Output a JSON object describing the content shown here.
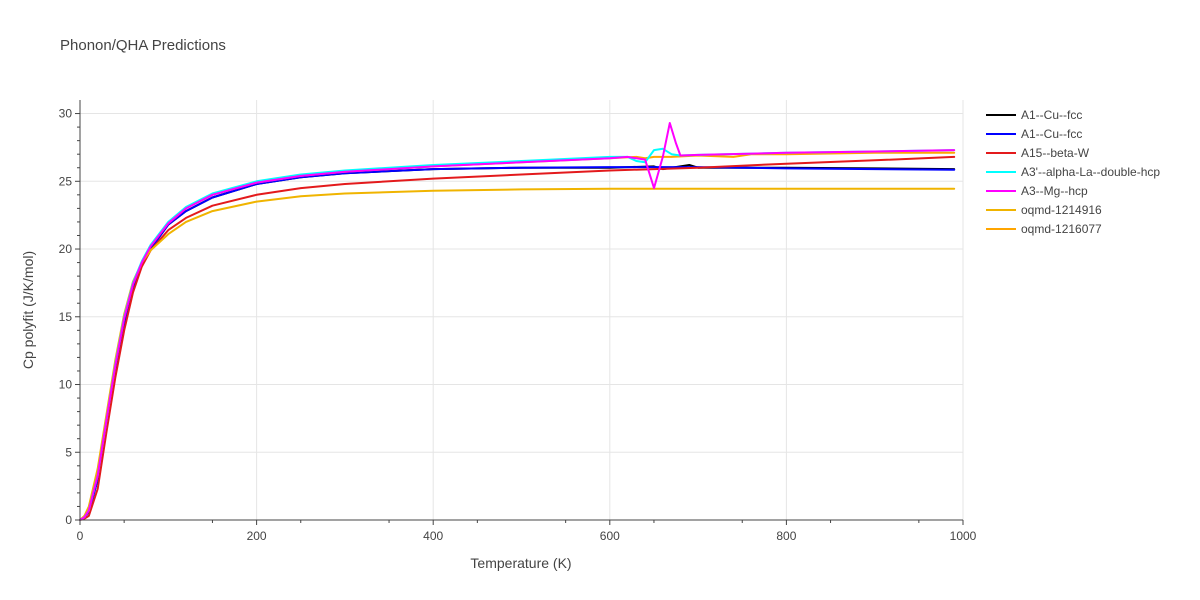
{
  "chart_data": {
    "type": "line",
    "title": "Phonon/QHA Predictions",
    "xlabel": "Temperature (K)",
    "ylabel": "Cp polyfit (J/K/mol)",
    "xlim": [
      0,
      1000
    ],
    "ylim": [
      0,
      31
    ],
    "xticks": [
      0,
      200,
      400,
      600,
      800,
      1000
    ],
    "yticks": [
      0,
      5,
      10,
      15,
      20,
      25,
      30
    ],
    "grid": true,
    "legend_position": "right",
    "series": [
      {
        "name": "A1--Cu--fcc",
        "color": "#000000",
        "x": [
          0,
          5,
          10,
          20,
          30,
          40,
          50,
          60,
          70,
          80,
          100,
          120,
          150,
          200,
          250,
          300,
          400,
          500,
          600,
          650,
          660,
          670,
          680,
          690,
          700,
          800,
          900,
          990
        ],
        "y": [
          0,
          0.2,
          0.6,
          3,
          7,
          11,
          14.5,
          17,
          18.8,
          20,
          21.8,
          22.8,
          23.8,
          24.8,
          25.3,
          25.6,
          25.9,
          26.0,
          26.0,
          26.1,
          25.9,
          26.0,
          26.1,
          26.2,
          26.0,
          26.0,
          25.95,
          25.9
        ]
      },
      {
        "name": "A1--Cu--fcc",
        "color": "#0000ff",
        "x": [
          0,
          5,
          10,
          20,
          30,
          40,
          50,
          60,
          70,
          80,
          100,
          120,
          150,
          200,
          250,
          300,
          400,
          500,
          600,
          650,
          700,
          800,
          900,
          990
        ],
        "y": [
          0,
          0.2,
          0.6,
          3,
          7,
          11,
          14.5,
          17,
          18.8,
          20,
          21.8,
          22.8,
          23.8,
          24.8,
          25.3,
          25.6,
          25.9,
          26.0,
          26.05,
          26.05,
          26.05,
          25.95,
          25.9,
          25.85
        ]
      },
      {
        "name": "A15--beta-W",
        "color": "#e31a1c",
        "x": [
          0,
          5,
          10,
          20,
          30,
          40,
          50,
          60,
          70,
          80,
          100,
          120,
          150,
          200,
          250,
          300,
          400,
          500,
          600,
          700,
          800,
          900,
          990
        ],
        "y": [
          0,
          0.1,
          0.3,
          2.3,
          6.5,
          10.5,
          14,
          16.8,
          18.7,
          19.9,
          21.4,
          22.3,
          23.2,
          24.0,
          24.5,
          24.8,
          25.2,
          25.5,
          25.8,
          26.0,
          26.3,
          26.55,
          26.8
        ]
      },
      {
        "name": "A3'--alpha-La--double-hcp",
        "color": "#00ffff",
        "x": [
          0,
          5,
          10,
          20,
          30,
          40,
          50,
          60,
          70,
          80,
          100,
          120,
          150,
          200,
          250,
          300,
          400,
          500,
          600,
          620,
          630,
          640,
          650,
          660,
          670,
          680,
          700,
          800,
          900,
          990
        ],
        "y": [
          0,
          0.2,
          0.7,
          3.3,
          7.4,
          11.5,
          15,
          17.5,
          19.1,
          20.3,
          22.0,
          23.1,
          24.1,
          25.0,
          25.5,
          25.8,
          26.2,
          26.5,
          26.8,
          26.8,
          26.5,
          26.4,
          27.3,
          27.4,
          27.0,
          26.9,
          26.95,
          27.1,
          27.2,
          27.3
        ]
      },
      {
        "name": "A3--Mg--hcp",
        "color": "#ff00ff",
        "x": [
          0,
          5,
          10,
          20,
          30,
          40,
          50,
          60,
          70,
          80,
          100,
          120,
          150,
          200,
          250,
          300,
          400,
          500,
          600,
          620,
          640,
          650,
          660,
          668,
          675,
          680,
          700,
          800,
          900,
          990
        ],
        "y": [
          0,
          0.2,
          0.7,
          3.3,
          7.4,
          11.4,
          14.9,
          17.4,
          19.0,
          20.2,
          21.9,
          23.0,
          24.0,
          24.9,
          25.4,
          25.7,
          26.1,
          26.4,
          26.7,
          26.8,
          26.6,
          24.5,
          26.8,
          29.3,
          27.8,
          26.9,
          26.95,
          27.1,
          27.2,
          27.3
        ]
      },
      {
        "name": "oqmd-1214916",
        "color": "#f0b400",
        "x": [
          0,
          5,
          10,
          20,
          30,
          40,
          50,
          60,
          70,
          80,
          100,
          120,
          150,
          200,
          250,
          300,
          400,
          500,
          600,
          700,
          800,
          900,
          990
        ],
        "y": [
          0,
          0.3,
          1,
          3.8,
          7.8,
          11.8,
          15.2,
          17.6,
          19,
          19.9,
          21.1,
          22,
          22.8,
          23.5,
          23.9,
          24.1,
          24.3,
          24.4,
          24.45,
          24.45,
          24.45,
          24.45,
          24.45
        ]
      },
      {
        "name": "oqmd-1216077",
        "color": "#ffa500",
        "x": [
          0,
          5,
          10,
          20,
          30,
          40,
          50,
          60,
          70,
          80,
          100,
          120,
          150,
          200,
          250,
          300,
          400,
          500,
          600,
          630,
          640,
          650,
          670,
          700,
          740,
          760,
          800,
          900,
          990
        ],
        "y": [
          0,
          0.2,
          0.7,
          3.3,
          7.4,
          11.4,
          14.9,
          17.4,
          19.0,
          20.2,
          21.9,
          23.0,
          24.0,
          24.9,
          25.4,
          25.7,
          26.1,
          26.4,
          26.7,
          26.8,
          26.7,
          26.8,
          26.8,
          26.9,
          26.8,
          27.0,
          27.0,
          27.1,
          27.1
        ]
      }
    ]
  }
}
